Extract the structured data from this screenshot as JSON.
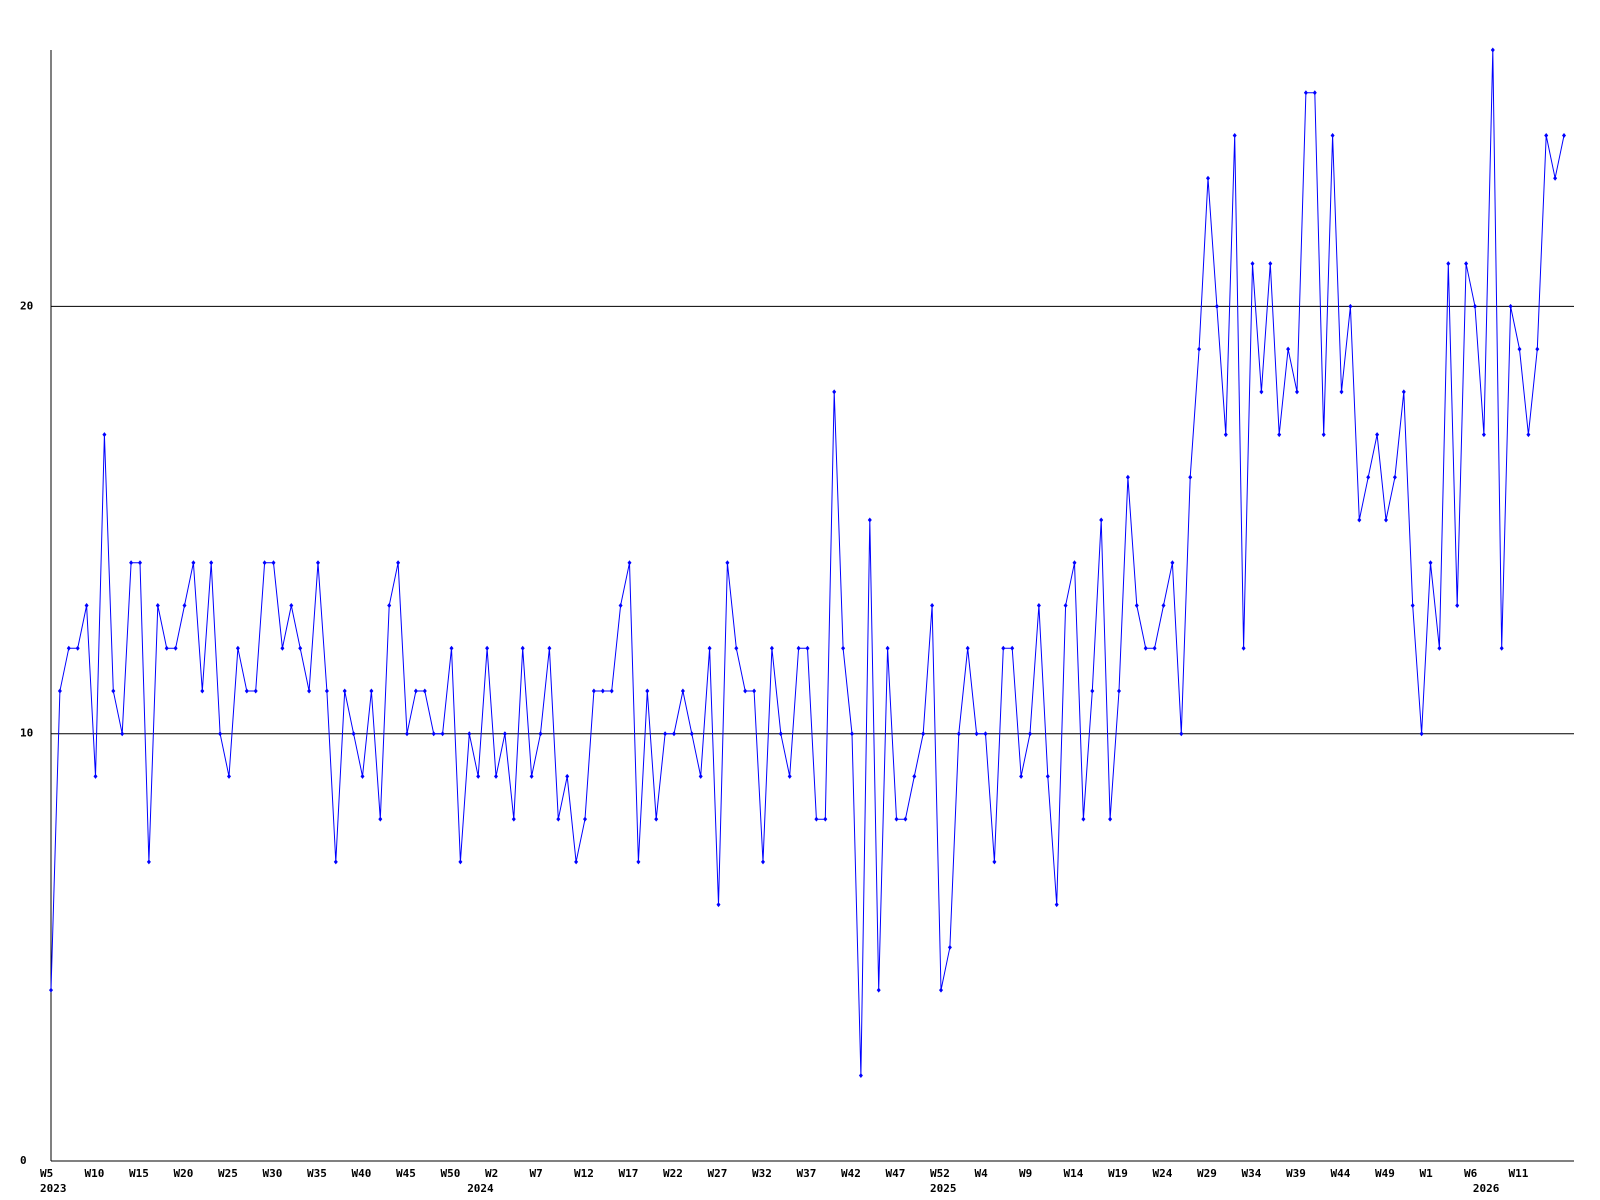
{
  "chart_data": {
    "type": "line",
    "categories": [
      "W5",
      null,
      null,
      null,
      null,
      "W10",
      null,
      null,
      null,
      null,
      "W15",
      null,
      null,
      null,
      null,
      "W20",
      null,
      null,
      null,
      null,
      "W25",
      null,
      null,
      null,
      null,
      "W30",
      null,
      null,
      null,
      null,
      "W35",
      null,
      null,
      null,
      null,
      "W40",
      null,
      null,
      null,
      null,
      "W45",
      null,
      null,
      null,
      null,
      "W50",
      null,
      null,
      null,
      null,
      "W2",
      null,
      null,
      null,
      null,
      "W7",
      null,
      null,
      null,
      null,
      "W12",
      null,
      null,
      null,
      null,
      "W17",
      null,
      null,
      null,
      null,
      "W22",
      null,
      null,
      null,
      null,
      "W27",
      null,
      null,
      null,
      null,
      "W32",
      null,
      null,
      null,
      null,
      "W37",
      null,
      null,
      null,
      null,
      "W42",
      null,
      null,
      null,
      null,
      "W47",
      null,
      null,
      null,
      null,
      "W52",
      null,
      null,
      null,
      null,
      "W4",
      null,
      null,
      null,
      null,
      "W9",
      null,
      null,
      null,
      null,
      "W14",
      null,
      null,
      null,
      null,
      "W19",
      null,
      null,
      null,
      null,
      "W24",
      null,
      null,
      null,
      null,
      "W29",
      null,
      null,
      null,
      null,
      "W34",
      null,
      null,
      null,
      null,
      "W39",
      null,
      null,
      null,
      null,
      "W44",
      null,
      null,
      null,
      null,
      "W49",
      null,
      null,
      null,
      null,
      "W1",
      null,
      null,
      null,
      null,
      "W6",
      null,
      null,
      null,
      null,
      "W11",
      null,
      null,
      null,
      null,
      null
    ],
    "year_labels": [
      "2023",
      null,
      null,
      null,
      null,
      null,
      null,
      null,
      null,
      null,
      null,
      null,
      null,
      null,
      null,
      null,
      null,
      null,
      null,
      null,
      null,
      null,
      null,
      null,
      null,
      null,
      null,
      null,
      null,
      null,
      null,
      null,
      null,
      null,
      null,
      null,
      null,
      null,
      null,
      null,
      null,
      null,
      null,
      null,
      null,
      null,
      null,
      null,
      "2024",
      null,
      null,
      null,
      null,
      null,
      null,
      null,
      null,
      null,
      null,
      null,
      null,
      null,
      null,
      null,
      null,
      null,
      null,
      null,
      null,
      null,
      null,
      null,
      null,
      null,
      null,
      null,
      null,
      null,
      null,
      null,
      null,
      null,
      null,
      null,
      null,
      null,
      null,
      null,
      null,
      null,
      null,
      null,
      null,
      null,
      null,
      null,
      null,
      null,
      null,
      null,
      "2025",
      null,
      null,
      null,
      null,
      null,
      null,
      null,
      null,
      null,
      null,
      null,
      null,
      null,
      null,
      null,
      null,
      null,
      null,
      null,
      null,
      null,
      null,
      null,
      null,
      null,
      null,
      null,
      null,
      null,
      null,
      null,
      null,
      null,
      null,
      null,
      null,
      null,
      null,
      null,
      null,
      null,
      null,
      null,
      null,
      null,
      null,
      null,
      null,
      null,
      null,
      null,
      null,
      null,
      null,
      null,
      null,
      null,
      null,
      null,
      null,
      "2026",
      null,
      null,
      null,
      null,
      null,
      null,
      null,
      null,
      null,
      null,
      null,
      null,
      null,
      null,
      null
    ],
    "series": [
      {
        "color": "#0000ff",
        "values": [
          4,
          11,
          12,
          12,
          13,
          9,
          17,
          11,
          10,
          14,
          14,
          7,
          13,
          12,
          12,
          13,
          14,
          11,
          14,
          10,
          9,
          12,
          11,
          11,
          14,
          14,
          12,
          13,
          12,
          11,
          14,
          11,
          7,
          11,
          10,
          9,
          11,
          8,
          13,
          14,
          10,
          11,
          11,
          10,
          10,
          12,
          7,
          10,
          9,
          12,
          9,
          10,
          8,
          12,
          9,
          10,
          12,
          8,
          9,
          7,
          8,
          11,
          11,
          11,
          13,
          14,
          7,
          11,
          8,
          10,
          10,
          11,
          10,
          9,
          12,
          6,
          14,
          12,
          11,
          11,
          7,
          12,
          10,
          9,
          12,
          12,
          8,
          8,
          18,
          12,
          10,
          2,
          15,
          4,
          12,
          8,
          8,
          9,
          10,
          13,
          4,
          5,
          10,
          12,
          10,
          10,
          7,
          12,
          12,
          9,
          10,
          13,
          9,
          6,
          13,
          14,
          8,
          11,
          15,
          8,
          11,
          16,
          13,
          12,
          12,
          13,
          14,
          10,
          16,
          19,
          23,
          20,
          17,
          24,
          12,
          21,
          18,
          21,
          17,
          19,
          18,
          25,
          25,
          17,
          24,
          18,
          20,
          15,
          16,
          17,
          15,
          16,
          18,
          13,
          10,
          14,
          12,
          21,
          13,
          21,
          20,
          17,
          26,
          12,
          20,
          19,
          17,
          19,
          24,
          23,
          24
        ]
      }
    ],
    "ylim": [
      0,
      26
    ],
    "yticks": [
      0,
      10,
      20
    ],
    "grid": true
  }
}
